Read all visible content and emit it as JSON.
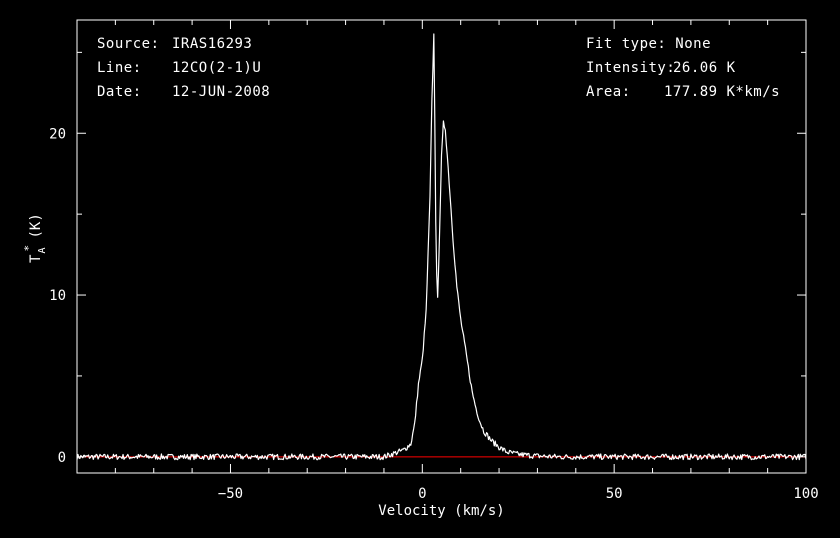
{
  "header": {
    "source_label": "Source:",
    "source_value": "IRAS16293",
    "line_label": "Line:",
    "line_value": "12CO(2-1)U",
    "date_label": "Date:",
    "date_value": "12-JUN-2008",
    "fit_type": "Fit type: None",
    "intensity_label": "Intensity:",
    "intensity_value": "26.06 K",
    "area_label": "Area:",
    "area_value": "177.89 K*km/s"
  },
  "chart_data": {
    "type": "line",
    "xlabel": "Velocity (km/s)",
    "ylabel_main": "T",
    "ylabel_sub": "A",
    "ylabel_sup": "*",
    "ylabel_unit": "(K)",
    "xlim": [
      -90,
      100
    ],
    "ylim": [
      -1,
      27
    ],
    "xticks": [
      -50,
      0,
      50,
      100
    ],
    "xtick_labels": [
      "−50",
      "0",
      "50",
      "100"
    ],
    "yticks": [
      0,
      10,
      20
    ],
    "ytick_labels": [
      "0",
      "10",
      "20"
    ],
    "baseline": 0,
    "colors": {
      "background": "#000000",
      "axes": "#ffffff",
      "spectrum": "#ffffff",
      "baseline": "#ff0000"
    },
    "series": [
      {
        "x": [
          -90,
          -10,
          -5,
          -3,
          -2,
          -1,
          0,
          1,
          2,
          2.5,
          3,
          3.3,
          3.6,
          4,
          4.5,
          5,
          5.5,
          6,
          7,
          8,
          9,
          10,
          11,
          12,
          13,
          14,
          15,
          16,
          18,
          20,
          22,
          25,
          30,
          35,
          100
        ],
        "y": [
          0,
          0,
          0.4,
          0.8,
          2.0,
          4.5,
          6.0,
          9.0,
          16.0,
          22.0,
          26.06,
          20.0,
          12.0,
          9.7,
          14.0,
          18.5,
          20.6,
          20.3,
          17.0,
          13.5,
          10.5,
          8.5,
          7.0,
          5.5,
          4.0,
          3.0,
          2.2,
          1.6,
          1.0,
          0.6,
          0.3,
          0.15,
          0.05,
          0,
          0
        ]
      }
    ]
  }
}
